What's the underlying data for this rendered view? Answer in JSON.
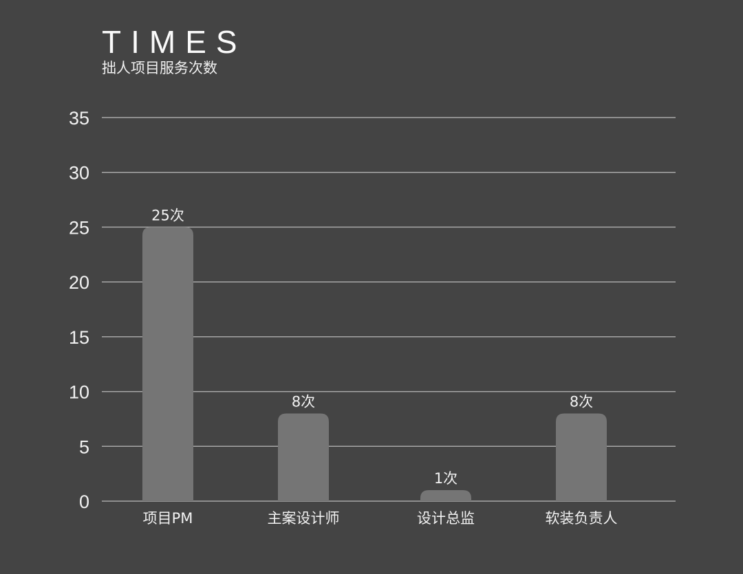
{
  "chart_data": {
    "type": "bar",
    "title": "TIMES",
    "subtitle": "拙人项目服务次数",
    "categories": [
      "项目PM",
      "主案设计师",
      "设计总监",
      "软装负责人"
    ],
    "values": [
      25,
      8,
      1,
      8
    ],
    "data_labels": [
      "25次",
      "8次",
      "1次",
      "8次"
    ],
    "ylim": [
      0,
      35
    ],
    "yticks": [
      0,
      5,
      10,
      15,
      20,
      25,
      30,
      35
    ],
    "grid": true,
    "colors": {
      "background": "#444444",
      "bar": "#757575",
      "grid": "#a8a8a8",
      "text": "#f2f2f2"
    }
  }
}
